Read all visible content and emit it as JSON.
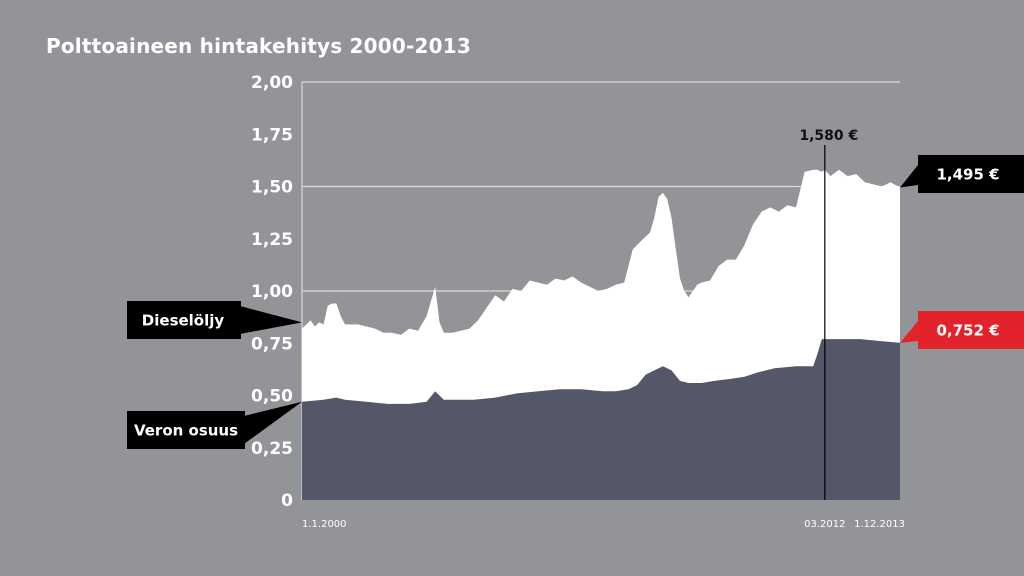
{
  "title": "Polttoaineen hintakehitys 2000-2013",
  "colors": {
    "background": "#939498",
    "diesel_area": "#ffffff",
    "tax_area": "#535768",
    "callout_black": "#000000",
    "callout_red": "#e3232b"
  },
  "chart_data": {
    "type": "area",
    "title": "Polttoaineen hintakehitys 2000-2013",
    "ylim": [
      0,
      2
    ],
    "y_ticks": [
      "0",
      "0,25",
      "0,50",
      "0,75",
      "1,00",
      "1,25",
      "1,50",
      "1,75",
      "2,00"
    ],
    "y_tick_values": [
      0,
      0.25,
      0.5,
      0.75,
      1.0,
      1.25,
      1.5,
      1.75,
      2.0
    ],
    "grid_lines_at": [
      1.0,
      1.5,
      2.0
    ],
    "x_range": [
      2000.0,
      2013.92
    ],
    "x_tick_labels": [
      {
        "label": "1.1.2000",
        "x": 2000.0
      },
      {
        "label": "03.2012",
        "x": 2012.17
      },
      {
        "label": "1.12.2013",
        "x": 2013.92
      }
    ],
    "series": [
      {
        "name": "Dieselöljy",
        "x": [
          2000.0,
          2000.1,
          2000.2,
          2000.3,
          2000.4,
          2000.5,
          2000.6,
          2000.7,
          2000.8,
          2000.9,
          2001.0,
          2001.1,
          2001.3,
          2001.5,
          2001.7,
          2001.9,
          2002.1,
          2002.3,
          2002.5,
          2002.7,
          2002.9,
          2003.1,
          2003.2,
          2003.3,
          2003.5,
          2003.7,
          2003.9,
          2004.1,
          2004.3,
          2004.5,
          2004.7,
          2004.9,
          2005.1,
          2005.3,
          2005.5,
          2005.7,
          2005.9,
          2006.1,
          2006.3,
          2006.5,
          2006.7,
          2006.9,
          2007.1,
          2007.3,
          2007.5,
          2007.7,
          2007.9,
          2008.1,
          2008.2,
          2008.3,
          2008.4,
          2008.5,
          2008.6,
          2008.7,
          2008.8,
          2008.9,
          2009.0,
          2009.1,
          2009.2,
          2009.3,
          2009.5,
          2009.7,
          2009.9,
          2010.1,
          2010.3,
          2010.5,
          2010.7,
          2010.9,
          2011.1,
          2011.3,
          2011.5,
          2011.7,
          2011.9,
          2012.0,
          2012.1,
          2012.17,
          2012.3,
          2012.5,
          2012.7,
          2012.9,
          2013.1,
          2013.3,
          2013.5,
          2013.7,
          2013.92
        ],
        "values": [
          0.82,
          0.84,
          0.86,
          0.83,
          0.85,
          0.84,
          0.93,
          0.94,
          0.94,
          0.88,
          0.84,
          0.84,
          0.84,
          0.83,
          0.82,
          0.8,
          0.8,
          0.79,
          0.82,
          0.81,
          0.88,
          1.02,
          0.85,
          0.8,
          0.8,
          0.81,
          0.82,
          0.86,
          0.92,
          0.98,
          0.95,
          1.01,
          1.0,
          1.05,
          1.04,
          1.03,
          1.06,
          1.05,
          1.07,
          1.04,
          1.02,
          1.0,
          1.01,
          1.03,
          1.04,
          1.2,
          1.24,
          1.28,
          1.35,
          1.45,
          1.47,
          1.44,
          1.35,
          1.2,
          1.06,
          1.0,
          0.97,
          1.0,
          1.03,
          1.04,
          1.05,
          1.12,
          1.15,
          1.15,
          1.22,
          1.32,
          1.38,
          1.4,
          1.38,
          1.41,
          1.4,
          1.57,
          1.58,
          1.58,
          1.57,
          1.58,
          1.55,
          1.58,
          1.55,
          1.56,
          1.52,
          1.51,
          1.5,
          1.52,
          1.495
        ]
      },
      {
        "name": "Veron osuus",
        "x": [
          2000.0,
          2000.5,
          2000.8,
          2001.0,
          2001.5,
          2002.0,
          2002.5,
          2002.9,
          2003.1,
          2003.3,
          2003.7,
          2004.0,
          2004.5,
          2005.0,
          2005.5,
          2006.0,
          2006.5,
          2007.0,
          2007.3,
          2007.6,
          2007.8,
          2008.0,
          2008.2,
          2008.4,
          2008.6,
          2008.8,
          2009.0,
          2009.3,
          2009.6,
          2010.0,
          2010.3,
          2010.6,
          2011.0,
          2011.5,
          2011.9,
          2012.0,
          2012.1,
          2012.17,
          2012.5,
          2013.0,
          2013.5,
          2013.92
        ],
        "values": [
          0.47,
          0.48,
          0.49,
          0.48,
          0.47,
          0.46,
          0.46,
          0.47,
          0.52,
          0.48,
          0.48,
          0.48,
          0.49,
          0.51,
          0.52,
          0.53,
          0.53,
          0.52,
          0.52,
          0.53,
          0.55,
          0.6,
          0.62,
          0.64,
          0.62,
          0.57,
          0.56,
          0.56,
          0.57,
          0.58,
          0.59,
          0.61,
          0.63,
          0.64,
          0.64,
          0.7,
          0.77,
          0.77,
          0.77,
          0.77,
          0.76,
          0.752
        ]
      }
    ],
    "peak_marker": {
      "x": 2012.17,
      "label": "1,580 €"
    },
    "callouts": {
      "diesel_end": "1,495 €",
      "tax_end": "0,752 €",
      "diesel_legend": "Dieselöljy",
      "tax_legend": "Veron osuus"
    }
  }
}
